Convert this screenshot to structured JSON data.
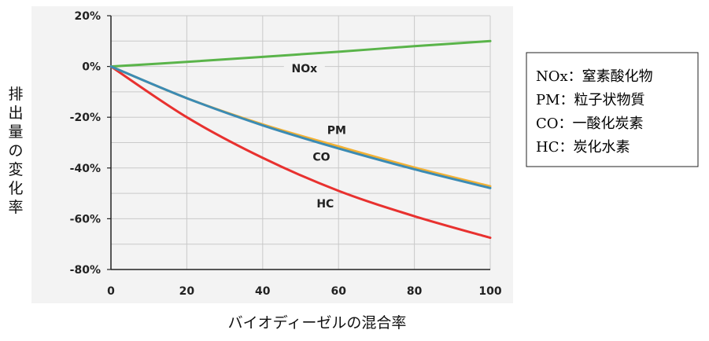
{
  "chart_data": {
    "type": "line",
    "title": "",
    "xlabel": "バイオディーゼルの混合率",
    "ylabel": "排出量の変化率",
    "xlim": [
      0,
      100
    ],
    "ylim": [
      -80,
      20
    ],
    "xticks": [
      0,
      20,
      40,
      60,
      80,
      100
    ],
    "yticks": [
      20,
      0,
      -20,
      -40,
      -60,
      -80
    ],
    "xtick_labels": [
      "0",
      "20",
      "40",
      "60",
      "80",
      "100"
    ],
    "ytick_labels": [
      "20%",
      "0%",
      "-20%",
      "-40%",
      "-60%",
      "-80%"
    ],
    "grid": true,
    "series": [
      {
        "name": "NOx",
        "color": "#5ab44a",
        "x": [
          0,
          20,
          40,
          60,
          80,
          100
        ],
        "y": [
          0,
          1.8,
          3.8,
          5.8,
          8.0,
          10.0
        ]
      },
      {
        "name": "PM",
        "color": "#f2b134",
        "x": [
          0,
          20,
          40,
          60,
          80,
          100
        ],
        "y": [
          0,
          -12.5,
          -22.8,
          -31.5,
          -39.8,
          -47.2
        ]
      },
      {
        "name": "CO",
        "color": "#3b8bb4",
        "x": [
          0,
          20,
          40,
          60,
          80,
          100
        ],
        "y": [
          0,
          -12.5,
          -23.2,
          -32.3,
          -40.5,
          -47.9
        ]
      },
      {
        "name": "HC",
        "color": "#e8312f",
        "x": [
          0,
          20,
          40,
          60,
          80,
          100
        ],
        "y": [
          0,
          -20.0,
          -36.0,
          -49.0,
          -59.0,
          -67.5
        ]
      }
    ],
    "legend": {
      "placement": "right",
      "entries": [
        "NOx：窒素酸化物",
        "PM：粒子状物質",
        "CO：一酸化炭素",
        "HC：炭化水素"
      ]
    }
  }
}
